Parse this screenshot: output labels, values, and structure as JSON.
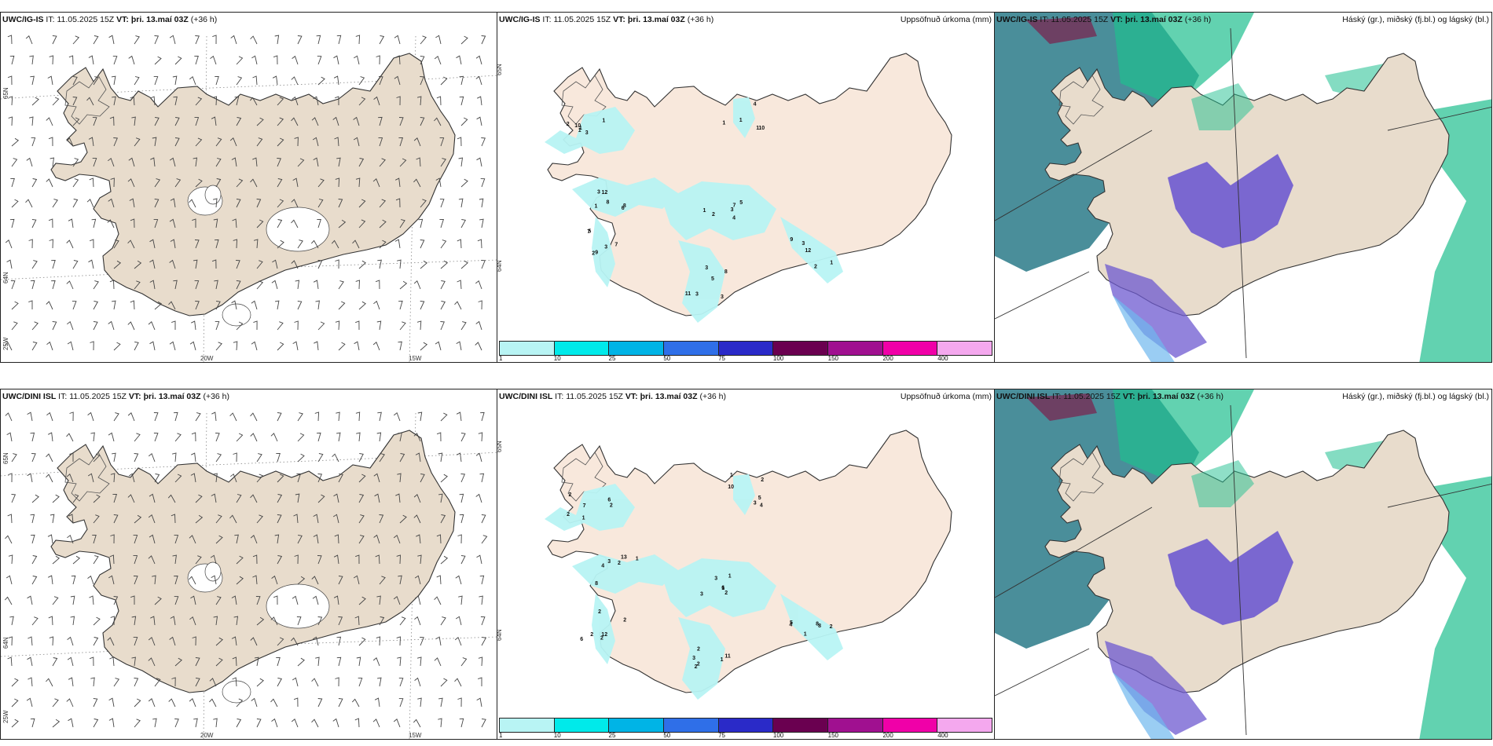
{
  "rows": [
    {
      "model": "UWC/IG-IS",
      "it_prefix": "IT:",
      "it_value": "11.05.2025 15Z",
      "vt_prefix": "VT:",
      "vt_value": "þri. 13.maí 03Z",
      "lead": "(+36 h)",
      "precip_labels": [
        "3",
        "12",
        "7",
        "3",
        "3",
        "3",
        "1",
        "1",
        "8",
        "7",
        "7",
        "3",
        "9",
        "1",
        "1",
        "8",
        "3",
        "5",
        "8",
        "12",
        "10",
        "10",
        "6",
        "2",
        "4",
        "5",
        "2",
        "1",
        "1",
        "1",
        "9",
        "2",
        "11",
        "1",
        "4",
        "2",
        "3",
        "5",
        "1",
        "3"
      ],
      "map_labels": {
        "lon": [
          "20W",
          "15W"
        ],
        "lat_left": [
          "65N",
          "64N",
          "25W"
        ],
        "lat_mid": [
          "65N",
          "64N"
        ]
      }
    },
    {
      "model": "UWC/DINI ISL",
      "it_prefix": "IT:",
      "it_value": "11.05.2025 15Z",
      "vt_prefix": "VT:",
      "vt_value": "þri. 13.maí 03Z",
      "lead": "(+36 h)",
      "precip_labels": [
        "2",
        "2",
        "12",
        "2",
        "2",
        "2",
        "2",
        "7",
        "8",
        "6",
        "3",
        "2",
        "1",
        "4",
        "2",
        "4",
        "2",
        "6",
        "11",
        "8",
        "10",
        "6",
        "3",
        "2",
        "3",
        "2",
        "4",
        "5",
        "2",
        "1",
        "2",
        "1",
        "3",
        "8",
        "3",
        "1",
        "13",
        "2",
        "1",
        "1",
        "5",
        "1"
      ],
      "map_labels": {
        "lon": [
          "20W",
          "15W"
        ],
        "lat_left": [
          "65N",
          "64N",
          "25W"
        ],
        "lat_mid": [
          "65N",
          "64N"
        ]
      }
    }
  ],
  "precip_title": "Uppsöfnuð úrkoma (mm)",
  "cloud_title": "Háský (gr.), miðský (fj.bl.) og lágský (bl.)",
  "colorbar": {
    "ticks": [
      "1",
      "10",
      "25",
      "50",
      "75",
      "100",
      "150",
      "200",
      "400"
    ],
    "colors": [
      "#b8f4f4",
      "#00eaea",
      "#00b4e6",
      "#2f6fe8",
      "#2a2ac8",
      "#6a0050",
      "#a01090",
      "#f000a8",
      "#f4a8ee"
    ]
  },
  "colors": {
    "land": "#e8dccc",
    "land_precip": "#f8e8dc",
    "precip_light": "#b8f4f4",
    "cloud_high": "#6e5ad0",
    "cloud_mid": "#1fbf8f",
    "cloud_low": "#2a7a88"
  }
}
